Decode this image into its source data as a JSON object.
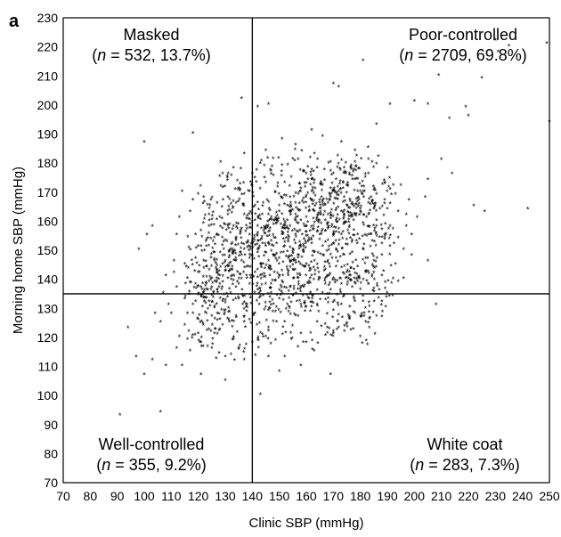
{
  "chart_data": {
    "type": "scatter",
    "panel_label": "a",
    "xlabel": "Clinic SBP (mmHg)",
    "ylabel": "Morning home SBP (mmHg)",
    "xlim": [
      70,
      250
    ],
    "ylim": [
      70,
      230
    ],
    "xticks": [
      "70",
      "80",
      "90",
      "100",
      "110",
      "120",
      "130",
      "140",
      "150",
      "160",
      "170",
      "180",
      "190",
      "200",
      "210",
      "220",
      "230",
      "240",
      "250"
    ],
    "yticks": [
      "70",
      "80",
      "90",
      "100",
      "110",
      "120",
      "130",
      "140",
      "150",
      "160",
      "170",
      "180",
      "190",
      "200",
      "210",
      "220",
      "230"
    ],
    "threshold_lines": {
      "x": 140,
      "y": 135
    },
    "marker": "*",
    "grid": false,
    "quadrants": [
      {
        "name": "Masked",
        "stat_pre": "(",
        "stat_n": "n",
        "stat_post": " = 532, 13.7%)"
      },
      {
        "name": "Poor-controlled",
        "stat_pre": "(",
        "stat_n": "n",
        "stat_post": " = 2709, 69.8%)"
      },
      {
        "name": "Well-controlled",
        "stat_pre": "(",
        "stat_n": "n",
        "stat_post": " = 355, 9.2%)"
      },
      {
        "name": "White coat",
        "stat_pre": "(",
        "stat_n": "n",
        "stat_post": " = 283, 7.3%)"
      }
    ],
    "points": [
      [
        91,
        93
      ],
      [
        100,
        187
      ],
      [
        106,
        94
      ],
      [
        118,
        190
      ],
      [
        136,
        202
      ],
      [
        142,
        199
      ],
      [
        146,
        200
      ],
      [
        170,
        207
      ],
      [
        172,
        206
      ],
      [
        181,
        215
      ],
      [
        186,
        193
      ],
      [
        191,
        200
      ],
      [
        200,
        201
      ],
      [
        205,
        200
      ],
      [
        209,
        210
      ],
      [
        213,
        195
      ],
      [
        219,
        199
      ],
      [
        220,
        196
      ],
      [
        225,
        209
      ],
      [
        230,
        222
      ],
      [
        231,
        218
      ],
      [
        235,
        220
      ],
      [
        249,
        221
      ],
      [
        250,
        194
      ],
      [
        242,
        164
      ],
      [
        226,
        163
      ],
      [
        222,
        165
      ],
      [
        214,
        176
      ],
      [
        210,
        181
      ],
      [
        204,
        168
      ],
      [
        201,
        161
      ],
      [
        205,
        146
      ],
      [
        208,
        131
      ],
      [
        194,
        139
      ],
      [
        188,
        132
      ],
      [
        180,
        120
      ],
      [
        172,
        123
      ],
      [
        169,
        107
      ],
      [
        160,
        118
      ],
      [
        152,
        113
      ],
      [
        146,
        113
      ],
      [
        143,
        100
      ],
      [
        150,
        108
      ],
      [
        158,
        110
      ],
      [
        137,
        112
      ],
      [
        130,
        105
      ],
      [
        121,
        107
      ],
      [
        114,
        110
      ],
      [
        108,
        110
      ],
      [
        103,
        112
      ],
      [
        100,
        107
      ],
      [
        97,
        113
      ],
      [
        94,
        123
      ],
      [
        98,
        150
      ],
      [
        101,
        155
      ],
      [
        103,
        158
      ],
      [
        112,
        155
      ],
      [
        114,
        170
      ],
      [
        118,
        167
      ],
      [
        124,
        162
      ],
      [
        129,
        176
      ],
      [
        133,
        178
      ],
      [
        137,
        183
      ],
      [
        139,
        170
      ],
      [
        145,
        184
      ],
      [
        151,
        188
      ],
      [
        156,
        186
      ],
      [
        162,
        191
      ],
      [
        166,
        189
      ],
      [
        173,
        187
      ],
      [
        178,
        184
      ],
      [
        183,
        181
      ],
      [
        190,
        178
      ],
      [
        195,
        172
      ],
      [
        198,
        167
      ],
      [
        205,
        174
      ],
      [
        199,
        155
      ],
      [
        196,
        150
      ],
      [
        193,
        145
      ],
      [
        188,
        152
      ],
      [
        185,
        164
      ],
      [
        177,
        149
      ],
      [
        180,
        170
      ],
      [
        171,
        174
      ],
      [
        164,
        178
      ],
      [
        159,
        177
      ],
      [
        152,
        173
      ],
      [
        147,
        177
      ],
      [
        141,
        160
      ],
      [
        136,
        157
      ],
      [
        132,
        150
      ],
      [
        129,
        145
      ],
      [
        125,
        140
      ],
      [
        121,
        134
      ],
      [
        118,
        128
      ],
      [
        115,
        124
      ],
      [
        112,
        137
      ],
      [
        109,
        131
      ],
      [
        106,
        125
      ],
      [
        104,
        128
      ],
      [
        108,
        141
      ],
      [
        111,
        146
      ],
      [
        116,
        140
      ],
      [
        119,
        147
      ],
      [
        123,
        151
      ],
      [
        127,
        155
      ],
      [
        131,
        162
      ],
      [
        134,
        166
      ],
      [
        138,
        144
      ],
      [
        142,
        150
      ],
      [
        146,
        146
      ],
      [
        149,
        152
      ],
      [
        152,
        157
      ],
      [
        155,
        150
      ],
      [
        158,
        160
      ],
      [
        161,
        153
      ],
      [
        164,
        156
      ],
      [
        167,
        160
      ],
      [
        170,
        152
      ],
      [
        173,
        163
      ],
      [
        176,
        158
      ],
      [
        179,
        155
      ],
      [
        182,
        147
      ],
      [
        185,
        142
      ],
      [
        188,
        141
      ],
      [
        191,
        158
      ],
      [
        194,
        163
      ],
      [
        197,
        158
      ],
      [
        199,
        148
      ],
      [
        196,
        140
      ],
      [
        192,
        134
      ],
      [
        186,
        127
      ],
      [
        181,
        132
      ],
      [
        177,
        137
      ],
      [
        173,
        131
      ],
      [
        169,
        136
      ],
      [
        165,
        140
      ],
      [
        161,
        133
      ],
      [
        157,
        127
      ],
      [
        153,
        131
      ],
      [
        149,
        125
      ],
      [
        145,
        120
      ],
      [
        141,
        128
      ],
      [
        137,
        125
      ],
      [
        133,
        119
      ],
      [
        129,
        124
      ],
      [
        125,
        127
      ],
      [
        121,
        118
      ],
      [
        117,
        115
      ],
      [
        113,
        120
      ],
      [
        110,
        128
      ],
      [
        107,
        135
      ],
      [
        111,
        142
      ],
      [
        115,
        133
      ],
      [
        119,
        138
      ],
      [
        123,
        144
      ],
      [
        127,
        136
      ],
      [
        131,
        140
      ],
      [
        135,
        133
      ],
      [
        139,
        138
      ],
      [
        143,
        141
      ],
      [
        147,
        135
      ],
      [
        151,
        139
      ],
      [
        155,
        143
      ],
      [
        159,
        137
      ],
      [
        163,
        146
      ],
      [
        167,
        143
      ],
      [
        171,
        147
      ],
      [
        175,
        142
      ],
      [
        179,
        144
      ],
      [
        183,
        138
      ],
      [
        187,
        136
      ],
      [
        184,
        155
      ],
      [
        178,
        162
      ],
      [
        174,
        168
      ],
      [
        168,
        166
      ],
      [
        162,
        170
      ],
      [
        156,
        166
      ],
      [
        150,
        163
      ],
      [
        144,
        166
      ],
      [
        140,
        153
      ],
      [
        136,
        148
      ],
      [
        132,
        143
      ],
      [
        128,
        138
      ],
      [
        124,
        132
      ],
      [
        120,
        126
      ],
      [
        126,
        121
      ],
      [
        130,
        129
      ],
      [
        134,
        127
      ],
      [
        138,
        131
      ],
      [
        142,
        136
      ],
      [
        146,
        129
      ],
      [
        150,
        133
      ],
      [
        154,
        137
      ],
      [
        158,
        131
      ],
      [
        162,
        141
      ],
      [
        166,
        135
      ],
      [
        170,
        129
      ],
      [
        174,
        134
      ],
      [
        178,
        128
      ],
      [
        182,
        125
      ],
      [
        176,
        126
      ],
      [
        170,
        121
      ],
      [
        164,
        125
      ],
      [
        158,
        121
      ],
      [
        152,
        125
      ],
      [
        146,
        123
      ],
      [
        140,
        118
      ],
      [
        135,
        116
      ],
      [
        130,
        113
      ],
      [
        125,
        116
      ],
      [
        120,
        121
      ],
      [
        116,
        119
      ],
      [
        112,
        116
      ],
      [
        115,
        145
      ],
      [
        119,
        155
      ],
      [
        124,
        158
      ],
      [
        128,
        161
      ],
      [
        133,
        158
      ],
      [
        137,
        162
      ],
      [
        141,
        165
      ],
      [
        145,
        157
      ],
      [
        149,
        160
      ],
      [
        153,
        165
      ],
      [
        157,
        169
      ],
      [
        161,
        163
      ],
      [
        165,
        167
      ],
      [
        169,
        171
      ],
      [
        173,
        155
      ],
      [
        177,
        153
      ],
      [
        181,
        159
      ],
      [
        186,
        160
      ],
      [
        190,
        164
      ],
      [
        193,
        169
      ],
      [
        189,
        173
      ],
      [
        183,
        176
      ],
      [
        176,
        176
      ],
      [
        169,
        180
      ],
      [
        163,
        183
      ],
      [
        157,
        181
      ],
      [
        151,
        179
      ],
      [
        145,
        173
      ],
      [
        140,
        176
      ],
      [
        135,
        171
      ],
      [
        131,
        168
      ],
      [
        127,
        166
      ],
      [
        122,
        168
      ],
      [
        117,
        163
      ],
      [
        113,
        161
      ],
      [
        147,
        143
      ],
      [
        150,
        147
      ],
      [
        154,
        146
      ],
      [
        157,
        140
      ],
      [
        160,
        145
      ],
      [
        163,
        149
      ],
      [
        166,
        151
      ],
      [
        168,
        146
      ],
      [
        171,
        144
      ],
      [
        174,
        148
      ],
      [
        172,
        157
      ],
      [
        168,
        162
      ],
      [
        164,
        161
      ],
      [
        160,
        158
      ],
      [
        156,
        155
      ],
      [
        152,
        151
      ],
      [
        148,
        148
      ],
      [
        144,
        145
      ],
      [
        141,
        142
      ],
      [
        138,
        140
      ],
      [
        135,
        138
      ],
      [
        132,
        135
      ],
      [
        129,
        132
      ],
      [
        126,
        130
      ],
      [
        123,
        128
      ],
      [
        143,
        153
      ],
      [
        146,
        156
      ],
      [
        149,
        159
      ],
      [
        153,
        160
      ],
      [
        156,
        162
      ],
      [
        159,
        166
      ],
      [
        162,
        167
      ],
      [
        165,
        164
      ],
      [
        168,
        157
      ],
      [
        171,
        160
      ],
      [
        174,
        162
      ],
      [
        177,
        166
      ],
      [
        180,
        164
      ],
      [
        183,
        162
      ],
      [
        186,
        158
      ],
      [
        189,
        155
      ],
      [
        155,
        134
      ],
      [
        158,
        137
      ],
      [
        161,
        139
      ],
      [
        164,
        131
      ],
      [
        167,
        138
      ],
      [
        170,
        140
      ],
      [
        173,
        138
      ],
      [
        176,
        141
      ],
      [
        179,
        139
      ],
      [
        182,
        142
      ],
      [
        185,
        146
      ],
      [
        188,
        148
      ],
      [
        191,
        151
      ],
      [
        194,
        154
      ],
      [
        197,
        162
      ],
      [
        144,
        134
      ],
      [
        147,
        138
      ],
      [
        150,
        141
      ],
      [
        153,
        143
      ],
      [
        156,
        146
      ],
      [
        159,
        149
      ],
      [
        162,
        152
      ],
      [
        165,
        155
      ],
      [
        168,
        153
      ],
      [
        171,
        156
      ],
      [
        174,
        159
      ],
      [
        177,
        161
      ],
      [
        180,
        163
      ],
      [
        183,
        166
      ],
      [
        186,
        169
      ],
      [
        189,
        167
      ],
      [
        139,
        147
      ],
      [
        142,
        149
      ],
      [
        145,
        151
      ],
      [
        148,
        154
      ],
      [
        151,
        156
      ],
      [
        154,
        158
      ],
      [
        157,
        156
      ],
      [
        160,
        161
      ],
      [
        163,
        163
      ],
      [
        166,
        166
      ],
      [
        169,
        168
      ],
      [
        172,
        170
      ],
      [
        175,
        172
      ],
      [
        178,
        174
      ],
      [
        181,
        170
      ],
      [
        184,
        168
      ],
      [
        120,
        142
      ],
      [
        122,
        146
      ],
      [
        126,
        149
      ],
      [
        130,
        153
      ],
      [
        134,
        154
      ],
      [
        138,
        157
      ],
      [
        142,
        158
      ],
      [
        146,
        162
      ],
      [
        150,
        165
      ],
      [
        154,
        168
      ],
      [
        158,
        171
      ],
      [
        162,
        174
      ],
      [
        166,
        172
      ],
      [
        170,
        176
      ],
      [
        174,
        178
      ],
      [
        178,
        180
      ],
      [
        118,
        131
      ],
      [
        121,
        137
      ],
      [
        124,
        139
      ],
      [
        127,
        143
      ],
      [
        130,
        146
      ],
      [
        133,
        149
      ],
      [
        136,
        152
      ],
      [
        139,
        155
      ],
      [
        116,
        128
      ],
      [
        119,
        132
      ],
      [
        122,
        135
      ],
      [
        125,
        137
      ],
      [
        128,
        141
      ],
      [
        131,
        144
      ],
      [
        134,
        146
      ],
      [
        137,
        150
      ]
    ]
  }
}
